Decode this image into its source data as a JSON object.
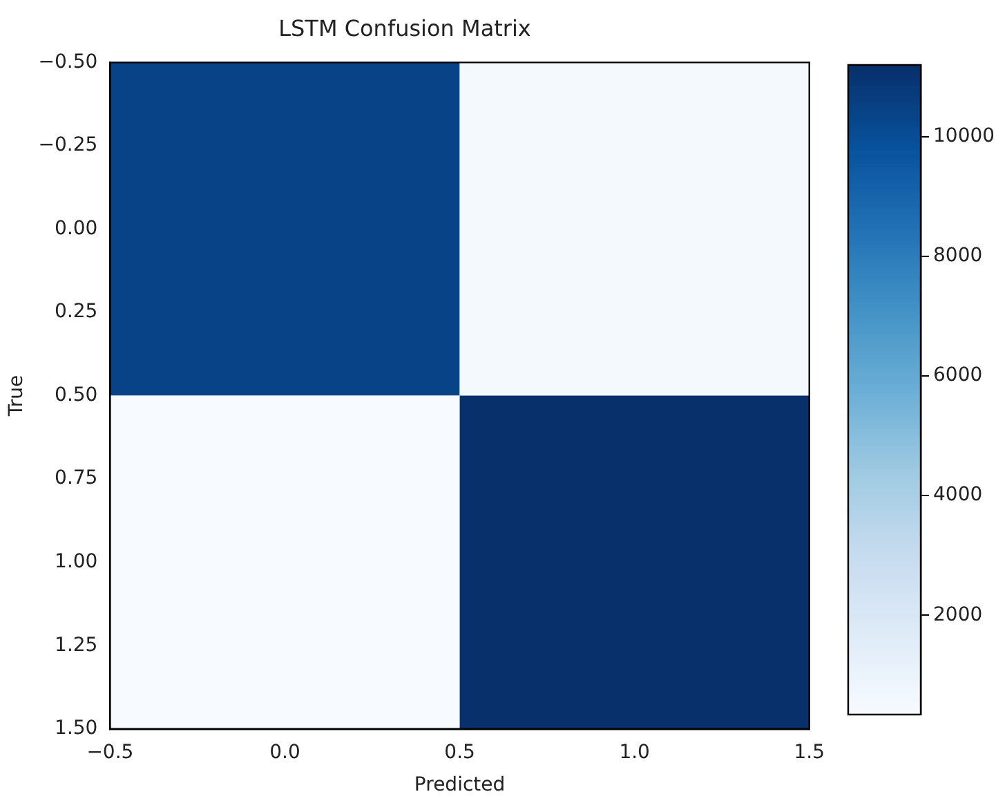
{
  "chart_data": {
    "type": "heatmap",
    "title": "LSTM Confusion Matrix",
    "xlabel": "Predicted",
    "ylabel": "True",
    "cells": [
      [
        10400,
        500
      ],
      [
        340,
        11200
      ]
    ],
    "xlim": [
      -0.5,
      1.5
    ],
    "xticks": [
      {
        "value": -0.5,
        "label": "−0.5"
      },
      {
        "value": 0,
        "label": "0.0"
      },
      {
        "value": 0.5,
        "label": "0.5"
      },
      {
        "value": 1,
        "label": "1.0"
      },
      {
        "value": 1.5,
        "label": "1.5"
      }
    ],
    "ylim": [
      1.5,
      -0.5
    ],
    "yticks": [
      {
        "value": -0.5,
        "label": "−0.50"
      },
      {
        "value": -0.25,
        "label": "−0.25"
      },
      {
        "value": 0,
        "label": "0.00"
      },
      {
        "value": 0.25,
        "label": "0.25"
      },
      {
        "value": 0.5,
        "label": "0.50"
      },
      {
        "value": 0.75,
        "label": "0.75"
      },
      {
        "value": 1,
        "label": "1.00"
      },
      {
        "value": 1.25,
        "label": "1.25"
      },
      {
        "value": 1.5,
        "label": "1.50"
      }
    ],
    "clim": [
      340,
      11200
    ],
    "cticks": [
      2000,
      4000,
      6000,
      8000,
      10000
    ],
    "grid": false
  }
}
